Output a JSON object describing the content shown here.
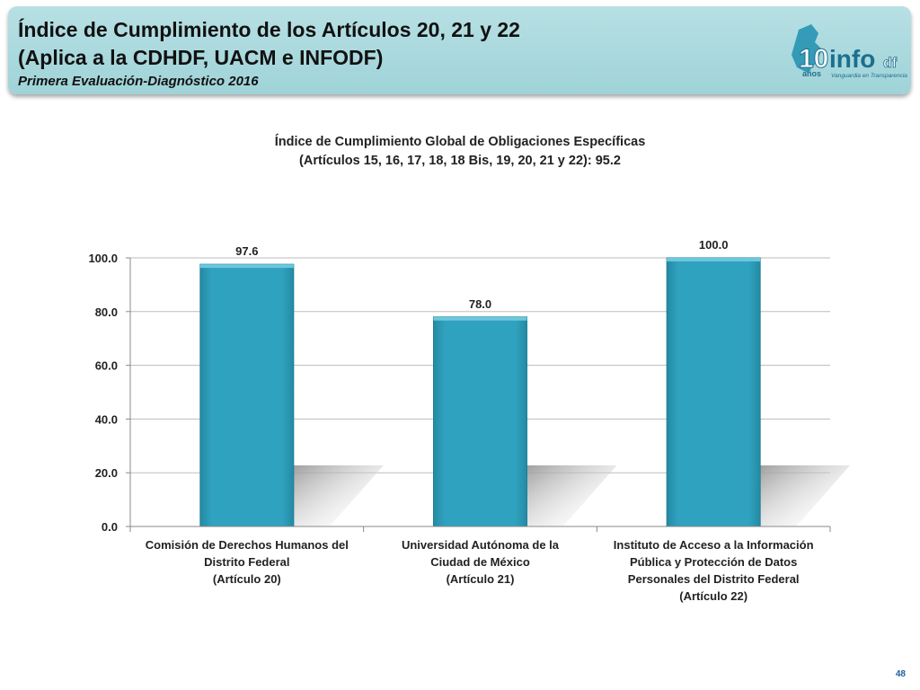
{
  "header": {
    "title_line1": "Índice de Cumplimiento de los Artículos 20, 21 y 22",
    "title_line2": "(Aplica a la CDHDF, UACM e INFODF)",
    "subtitle": "Primera Evaluación-Diagnóstico 2016",
    "logo_years": "10",
    "logo_years_word": "años",
    "logo_brand": "info",
    "logo_suffix": "df",
    "logo_tagline": "Vanguardia en Transparencia"
  },
  "chart_title_line1": "Índice de Cumplimiento Global de Obligaciones Específicas",
  "chart_title_line2": "(Artículos 15, 16, 17, 18, 18 Bis, 19, 20, 21 y 22): 95.2",
  "page_number": "48",
  "colors": {
    "bar": "#2ea0bc",
    "banner": "#a8d8dc",
    "axis_text": "#222222"
  },
  "chart_data": {
    "type": "bar",
    "categories": [
      [
        "Comisión de Derechos Humanos del",
        "Distrito Federal",
        "(Artículo 20)"
      ],
      [
        "Universidad Autónoma de la",
        "Ciudad de México",
        "(Artículo 21)"
      ],
      [
        "Instituto de Acceso a la Información",
        "Pública y Protección de Datos",
        "Personales del Distrito Federal",
        "(Artículo 22)"
      ]
    ],
    "values": [
      97.6,
      78.0,
      100.0
    ],
    "value_labels": [
      "97.6",
      "78.0",
      "100.0"
    ],
    "yticks": [
      "0.0",
      "20.0",
      "40.0",
      "60.0",
      "80.0",
      "100.0"
    ],
    "ylim": [
      0,
      100
    ],
    "grid": true,
    "legend": "none"
  }
}
